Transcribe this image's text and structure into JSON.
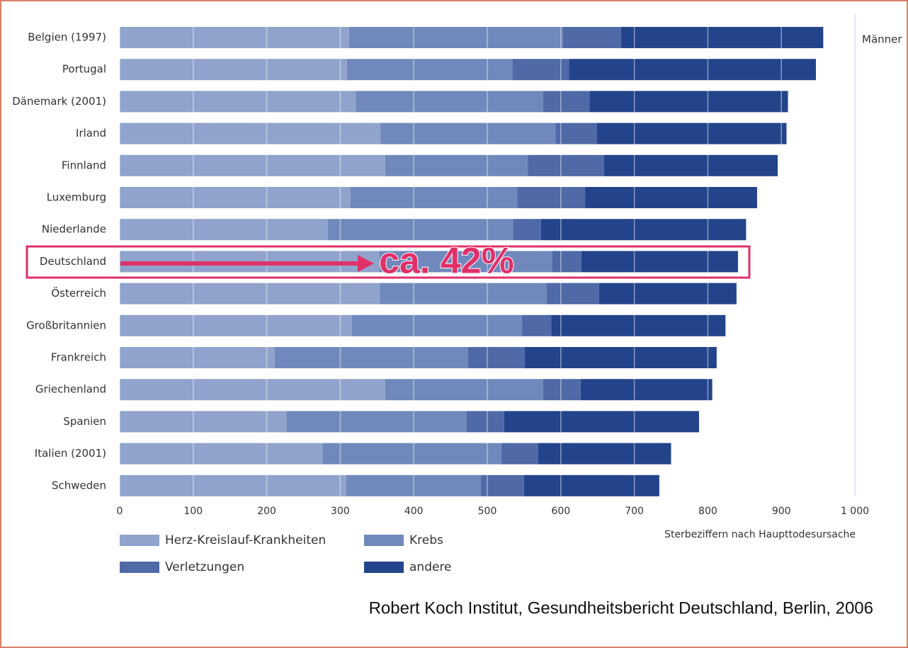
{
  "chart_data": {
    "type": "stacked-barh",
    "categories": [
      "Belgien (1997)",
      "Portugal",
      "Dänemark (2001)",
      "Irland",
      "Finnland",
      "Luxemburg",
      "Niederlande",
      "Deutschland",
      "Österreich",
      "Großbritannien",
      "Frankreich",
      "Griechenland",
      "Spanien",
      "Italien (2001)",
      "Schweden"
    ],
    "series": [
      {
        "name": "Herz-Kreislauf-Krankheiten",
        "color": "#8fa3cc",
        "values": [
          312,
          309,
          321,
          355,
          361,
          314,
          283,
          353,
          354,
          316,
          211,
          361,
          227,
          276,
          308
        ]
      },
      {
        "name": "Krebs",
        "color": "#7088bb",
        "values": [
          291,
          225,
          255,
          238,
          194,
          227,
          252,
          235,
          227,
          231,
          263,
          215,
          245,
          243,
          183
        ]
      },
      {
        "name": "Verletzungen",
        "color": "#4f6aa6",
        "values": [
          79,
          77,
          63,
          56,
          104,
          92,
          38,
          40,
          71,
          40,
          77,
          51,
          51,
          50,
          59
        ]
      },
      {
        "name": "andere",
        "color": "#23448a",
        "values": [
          275,
          336,
          270,
          258,
          236,
          234,
          279,
          213,
          187,
          237,
          261,
          179,
          265,
          181,
          184
        ]
      }
    ],
    "xlim": [
      0,
      1000
    ],
    "xticks": [
      0,
      100,
      200,
      300,
      400,
      500,
      600,
      700,
      800,
      900,
      {
        "value": 1000,
        "label": "1 000"
      }
    ],
    "xlabel": "Sterbeziffern nach Haupttodesursache",
    "panel_label": "Männer",
    "annotation": "ca. 42%",
    "source": "Robert Koch Institut, Gesundheitsbericht Deutschland, Berlin, 2006",
    "grid": true
  }
}
